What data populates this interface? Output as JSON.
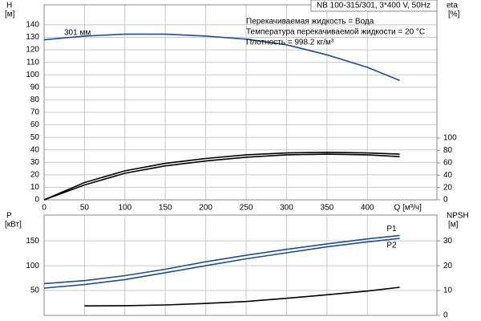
{
  "chart_data": [
    {
      "type": "line",
      "subtitle": "NB 100-315/301, 3*400 V, 50Hz",
      "notes": [
        "Перекачиваемая жидкость = Вода",
        "Температура перекачиваемой жидкости = 20 °C",
        "Плотность = 998.2 кг/м³"
      ],
      "annotations": [
        "301 мм"
      ],
      "y_label": [
        "H",
        "[м]"
      ],
      "y2_label": [
        "eta",
        "[%]"
      ],
      "x_label": "Q [м³/ч]",
      "x": [
        0,
        50,
        100,
        150,
        200,
        250,
        300,
        350,
        400,
        440
      ],
      "series": [
        {
          "color": "#1f4e8c",
          "values": [
            128,
            131,
            132.5,
            132.5,
            131,
            128.5,
            124,
            116,
            106,
            95.5
          ]
        },
        {
          "color": "#000000",
          "axis": "y2",
          "values": [
            0,
            28,
            47,
            59,
            67,
            73,
            76,
            77,
            76,
            74
          ]
        },
        {
          "color": "#000000",
          "axis": "y2",
          "values": [
            0,
            24,
            43,
            55,
            63,
            69,
            73,
            74,
            73,
            70
          ]
        }
      ],
      "xlim": [
        0,
        486
      ],
      "xticks": [
        0,
        50,
        100,
        150,
        200,
        250,
        300,
        350,
        400
      ],
      "ylim": [
        0,
        156
      ],
      "yticks": [
        0,
        10,
        20,
        30,
        40,
        50,
        60,
        70,
        80,
        90,
        100,
        110,
        120,
        130,
        140
      ],
      "y2lim": [
        0,
        316
      ],
      "y2ticks": [
        0,
        20,
        40,
        60,
        80,
        100
      ],
      "grid": true
    },
    {
      "type": "line",
      "y_label": [
        "P",
        "[кВт]"
      ],
      "y2_label": [
        "NPSH",
        "[м]"
      ],
      "x": [
        0,
        50,
        100,
        150,
        200,
        250,
        300,
        350,
        400,
        440
      ],
      "series": [
        {
          "name": "P1",
          "color": "#1f4e8c",
          "values": [
            64,
            70,
            80,
            93,
            108,
            121,
            133,
            144,
            154,
            161
          ]
        },
        {
          "name": "P2",
          "color": "#1f4e8c",
          "values": [
            55,
            62,
            72,
            86,
            100,
            114,
            126,
            138,
            148,
            155
          ]
        },
        {
          "color": "#000000",
          "axis": "y2",
          "values": [
            null,
            3.8,
            3.9,
            4.2,
            4.8,
            5.6,
            6.9,
            8.3,
            9.8,
            11.3
          ]
        }
      ],
      "xlim": [
        0,
        486
      ],
      "ylim": [
        0,
        202
      ],
      "yticks": [
        50,
        100,
        150
      ],
      "y2lim": [
        0,
        40.4
      ],
      "y2ticks": [
        0,
        10,
        20,
        30
      ],
      "grid": true
    }
  ]
}
